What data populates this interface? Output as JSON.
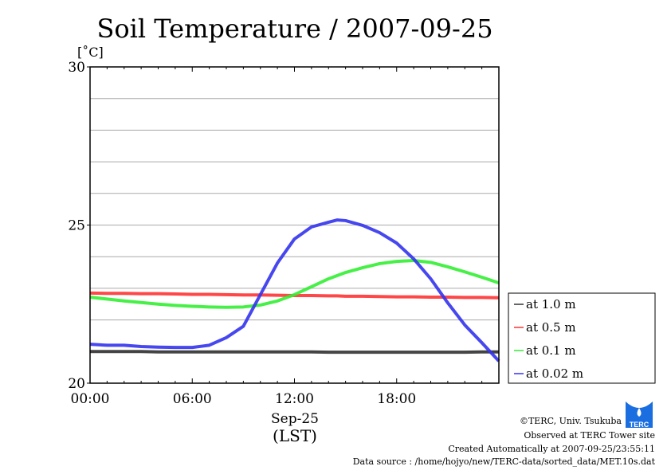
{
  "chart_data": {
    "type": "line",
    "title": "Soil Temperature / 2007-09-25",
    "ylabel": "[˚C]",
    "xlabel_date": "Sep-25",
    "xlabel": "(LST)",
    "ylim": [
      20,
      30
    ],
    "xlim": [
      0,
      24
    ],
    "yticks": [
      "20",
      "25",
      "30"
    ],
    "ytick_values": [
      20,
      25,
      30
    ],
    "xticks": [
      "00:00",
      "06:00",
      "12:00",
      "18:00"
    ],
    "xtick_values": [
      0,
      6,
      12,
      18
    ],
    "grid": true,
    "legend_position": "right",
    "x": [
      0,
      1,
      2,
      3,
      4,
      5,
      6,
      7,
      8,
      9,
      10,
      11,
      12,
      13,
      14,
      14.5,
      15,
      16,
      17,
      18,
      19,
      20,
      21,
      22,
      23,
      24
    ],
    "series": [
      {
        "name": "at 1.0 m",
        "color": "#333333",
        "values": [
          21.0,
          21.0,
          21.0,
          21.0,
          20.99,
          20.99,
          20.99,
          20.99,
          20.99,
          20.99,
          20.99,
          20.99,
          20.99,
          20.99,
          20.98,
          20.98,
          20.98,
          20.98,
          20.98,
          20.98,
          20.98,
          20.98,
          20.98,
          20.98,
          20.99,
          20.99
        ]
      },
      {
        "name": "at 0.5 m",
        "color": "#ff3333",
        "values": [
          22.85,
          22.84,
          22.84,
          22.83,
          22.83,
          22.82,
          22.81,
          22.81,
          22.8,
          22.79,
          22.79,
          22.78,
          22.77,
          22.77,
          22.76,
          22.76,
          22.75,
          22.75,
          22.74,
          22.73,
          22.73,
          22.72,
          22.72,
          22.71,
          22.71,
          22.7
        ]
      },
      {
        "name": "at 0.1 m",
        "color": "#33ee33",
        "values": [
          22.72,
          22.66,
          22.6,
          22.55,
          22.5,
          22.46,
          22.43,
          22.41,
          22.4,
          22.41,
          22.47,
          22.6,
          22.8,
          23.05,
          23.3,
          23.4,
          23.5,
          23.65,
          23.78,
          23.85,
          23.88,
          23.82,
          23.68,
          23.52,
          23.35,
          23.17
        ]
      },
      {
        "name": "at 0.02 m",
        "color": "#3333ee",
        "values": [
          21.23,
          21.2,
          21.2,
          21.16,
          21.14,
          21.13,
          21.13,
          21.2,
          21.44,
          21.8,
          22.8,
          23.8,
          24.56,
          24.94,
          25.09,
          25.16,
          25.14,
          24.99,
          24.76,
          24.43,
          23.93,
          23.3,
          22.54,
          21.84,
          21.28,
          20.7
        ]
      }
    ]
  },
  "footer": {
    "copyright": "©TERC, Univ. Tsukuba",
    "observed": "Observed at TERC Tower site",
    "created": "Created Automatically at 2007-09-25/23:55:11",
    "source": "Data source : /home/hojyo/new/TERC-data/sorted_data/MET.10s.dat",
    "logo_text": "TERC"
  }
}
